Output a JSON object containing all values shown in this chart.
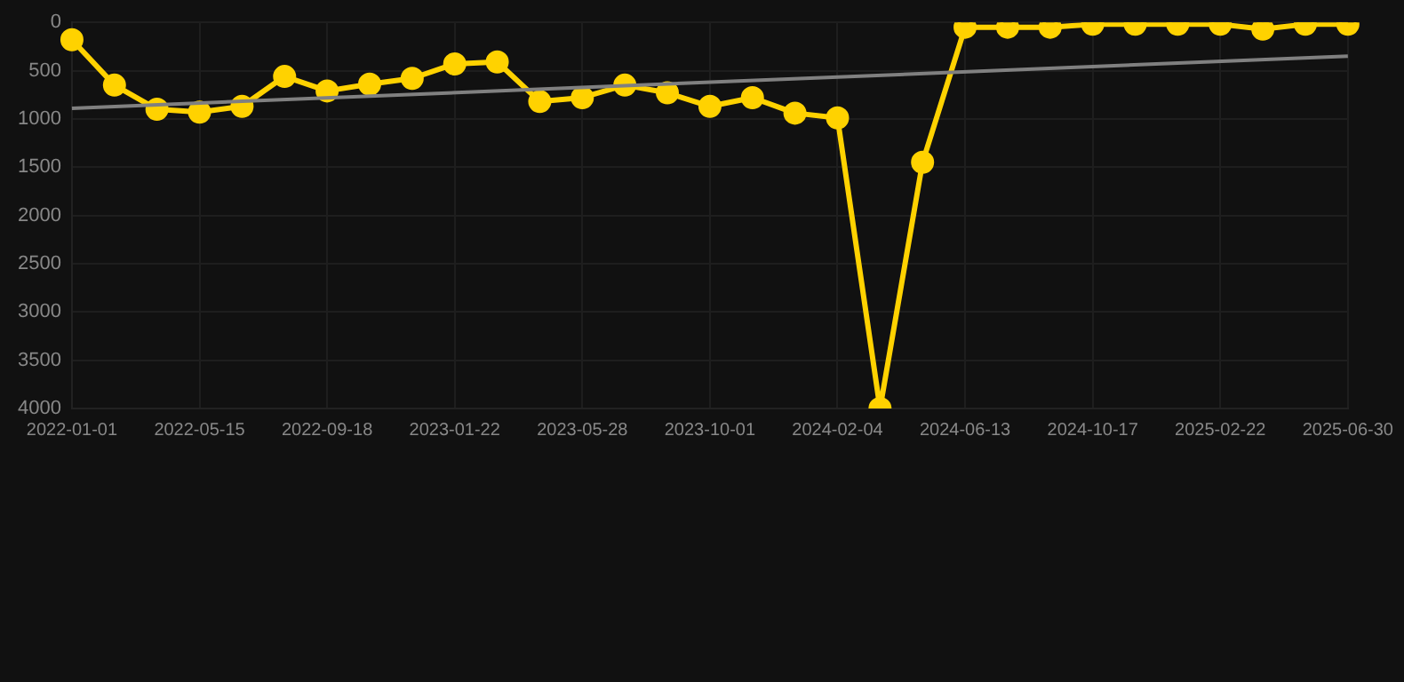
{
  "chart_data": {
    "type": "line",
    "categories": [
      "2022-01-01",
      null,
      null,
      "2022-05-15",
      null,
      null,
      "2022-09-18",
      null,
      null,
      "2023-01-22",
      null,
      null,
      "2023-05-28",
      null,
      null,
      "2023-10-01",
      null,
      null,
      "2024-02-04",
      null,
      null,
      "2024-06-13",
      null,
      null,
      "2024-10-17",
      null,
      null,
      "2025-02-22",
      null,
      null,
      "2025-06-30"
    ],
    "series": [
      {
        "color": "#ffd200",
        "values": [
          180,
          650,
          900,
          930,
          870,
          560,
          710,
          640,
          580,
          430,
          410,
          820,
          780,
          650,
          730,
          870,
          780,
          940,
          990,
          4000,
          1450,
          50,
          50,
          50,
          20,
          20,
          20,
          20,
          70,
          20,
          20
        ],
        "marker": "circle"
      },
      {
        "type": "line",
        "color": "#808080",
        "values": [
          890,
          null,
          null,
          null,
          null,
          null,
          null,
          null,
          null,
          null,
          null,
          null,
          null,
          null,
          null,
          null,
          null,
          null,
          null,
          null,
          null,
          null,
          null,
          null,
          null,
          null,
          null,
          null,
          null,
          null,
          350
        ],
        "marker": "none"
      }
    ],
    "ylim": [
      4000,
      0
    ],
    "yticks": [
      0,
      500,
      1000,
      1500,
      2000,
      2500,
      3000,
      3500,
      4000
    ],
    "grid": true,
    "legend": false,
    "line_style": "solid"
  }
}
